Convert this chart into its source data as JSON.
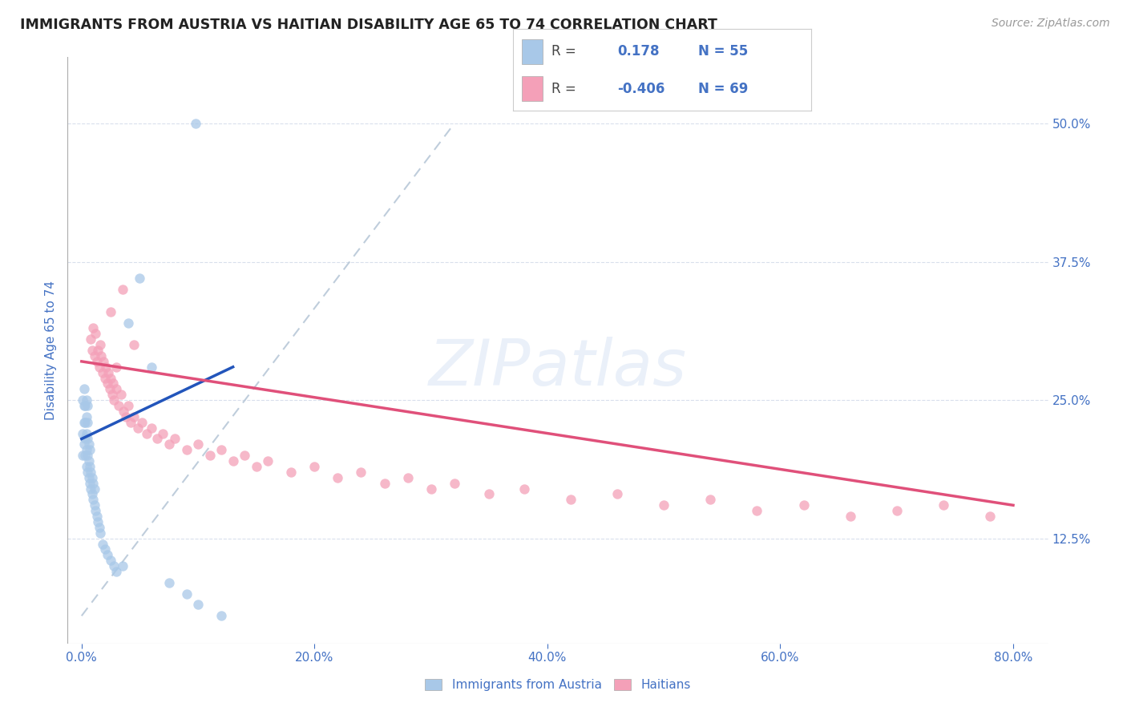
{
  "title": "IMMIGRANTS FROM AUSTRIA VS HAITIAN DISABILITY AGE 65 TO 74 CORRELATION CHART",
  "source": "Source: ZipAtlas.com",
  "ylabel": "Disability Age 65 to 74",
  "x_tick_labels": [
    "0.0%",
    "20.0%",
    "40.0%",
    "60.0%",
    "80.0%"
  ],
  "x_tick_positions": [
    0.0,
    0.2,
    0.4,
    0.6,
    0.8
  ],
  "y_tick_labels": [
    "12.5%",
    "25.0%",
    "37.5%",
    "50.0%"
  ],
  "y_tick_positions": [
    0.125,
    0.25,
    0.375,
    0.5
  ],
  "xlim": [
    -0.012,
    0.83
  ],
  "ylim": [
    0.03,
    0.56
  ],
  "austria_color": "#a8c8e8",
  "haitian_color": "#f4a0b8",
  "austria_line_color": "#2255bb",
  "haitian_line_color": "#e0507a",
  "diagonal_line_color": "#b8c8d8",
  "text_color": "#4472c4",
  "grid_color": "#d0d8e8",
  "austria_R": 0.178,
  "austria_N": 55,
  "haitian_R": -0.406,
  "haitian_N": 69,
  "austria_scatter_x": [
    0.001,
    0.001,
    0.001,
    0.002,
    0.002,
    0.002,
    0.002,
    0.003,
    0.003,
    0.003,
    0.003,
    0.004,
    0.004,
    0.004,
    0.004,
    0.004,
    0.005,
    0.005,
    0.005,
    0.005,
    0.005,
    0.006,
    0.006,
    0.006,
    0.007,
    0.007,
    0.007,
    0.008,
    0.008,
    0.009,
    0.009,
    0.01,
    0.01,
    0.011,
    0.011,
    0.012,
    0.013,
    0.014,
    0.015,
    0.016,
    0.018,
    0.02,
    0.022,
    0.025,
    0.028,
    0.03,
    0.035,
    0.04,
    0.05,
    0.06,
    0.075,
    0.09,
    0.1,
    0.12,
    0.098
  ],
  "austria_scatter_y": [
    0.2,
    0.22,
    0.25,
    0.21,
    0.23,
    0.245,
    0.26,
    0.2,
    0.215,
    0.23,
    0.245,
    0.19,
    0.205,
    0.22,
    0.235,
    0.25,
    0.185,
    0.2,
    0.215,
    0.23,
    0.245,
    0.18,
    0.195,
    0.21,
    0.175,
    0.19,
    0.205,
    0.17,
    0.185,
    0.165,
    0.18,
    0.16,
    0.175,
    0.155,
    0.17,
    0.15,
    0.145,
    0.14,
    0.135,
    0.13,
    0.12,
    0.115,
    0.11,
    0.105,
    0.1,
    0.095,
    0.1,
    0.32,
    0.36,
    0.28,
    0.085,
    0.075,
    0.065,
    0.055,
    0.5
  ],
  "haitian_scatter_x": [
    0.008,
    0.009,
    0.01,
    0.011,
    0.012,
    0.013,
    0.014,
    0.015,
    0.016,
    0.017,
    0.018,
    0.019,
    0.02,
    0.021,
    0.022,
    0.023,
    0.024,
    0.025,
    0.026,
    0.027,
    0.028,
    0.03,
    0.032,
    0.034,
    0.036,
    0.038,
    0.04,
    0.042,
    0.045,
    0.048,
    0.052,
    0.056,
    0.06,
    0.065,
    0.07,
    0.075,
    0.08,
    0.09,
    0.1,
    0.11,
    0.12,
    0.13,
    0.14,
    0.15,
    0.16,
    0.18,
    0.2,
    0.22,
    0.24,
    0.26,
    0.28,
    0.3,
    0.32,
    0.35,
    0.38,
    0.42,
    0.46,
    0.5,
    0.54,
    0.58,
    0.62,
    0.66,
    0.7,
    0.74,
    0.78,
    0.035,
    0.025,
    0.045,
    0.03
  ],
  "haitian_scatter_y": [
    0.305,
    0.295,
    0.315,
    0.29,
    0.31,
    0.285,
    0.295,
    0.28,
    0.3,
    0.29,
    0.275,
    0.285,
    0.27,
    0.28,
    0.265,
    0.275,
    0.26,
    0.27,
    0.255,
    0.265,
    0.25,
    0.26,
    0.245,
    0.255,
    0.24,
    0.235,
    0.245,
    0.23,
    0.235,
    0.225,
    0.23,
    0.22,
    0.225,
    0.215,
    0.22,
    0.21,
    0.215,
    0.205,
    0.21,
    0.2,
    0.205,
    0.195,
    0.2,
    0.19,
    0.195,
    0.185,
    0.19,
    0.18,
    0.185,
    0.175,
    0.18,
    0.17,
    0.175,
    0.165,
    0.17,
    0.16,
    0.165,
    0.155,
    0.16,
    0.15,
    0.155,
    0.145,
    0.15,
    0.155,
    0.145,
    0.35,
    0.33,
    0.3,
    0.28
  ],
  "austria_line_x": [
    0.0,
    0.13
  ],
  "austria_line_y": [
    0.215,
    0.28
  ],
  "haitian_line_x": [
    0.0,
    0.8
  ],
  "haitian_line_y": [
    0.285,
    0.155
  ],
  "diag_line_x": [
    0.0,
    0.32
  ],
  "diag_line_y": [
    0.055,
    0.5
  ]
}
